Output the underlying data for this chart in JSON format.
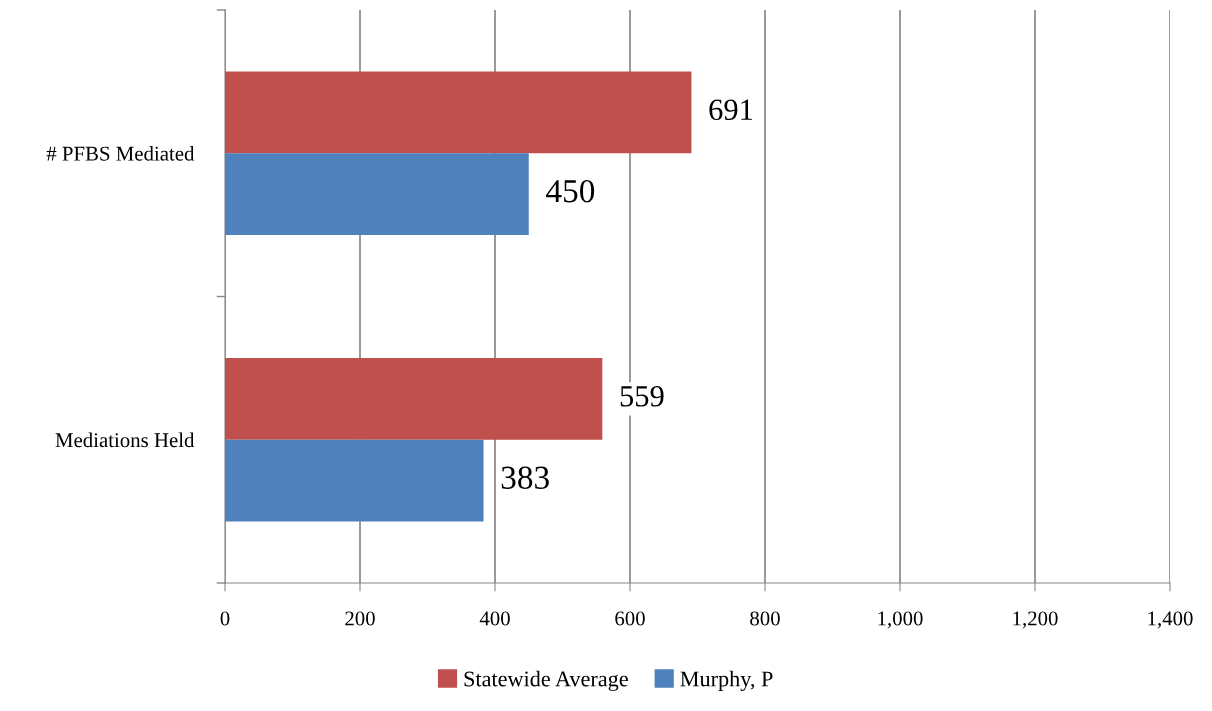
{
  "chart_data": {
    "type": "bar",
    "orientation": "horizontal",
    "categories": [
      "# PFBS Mediated",
      "Mediations Held"
    ],
    "series": [
      {
        "name": "Statewide Average",
        "color": "#c0504d",
        "values": [
          691,
          559
        ]
      },
      {
        "name": "Murphy, P",
        "color": "#4f81bd",
        "values": [
          450,
          383
        ]
      }
    ],
    "xlim": [
      0,
      1400
    ],
    "xticks": [
      0,
      200,
      400,
      600,
      800,
      {
        "value": 1000,
        "label": "1,000"
      },
      {
        "value": 1200,
        "label": "1,200"
      },
      {
        "value": 1400,
        "label": "1,400"
      }
    ],
    "grid": "x",
    "legend": "bottom",
    "data_labels": true
  }
}
